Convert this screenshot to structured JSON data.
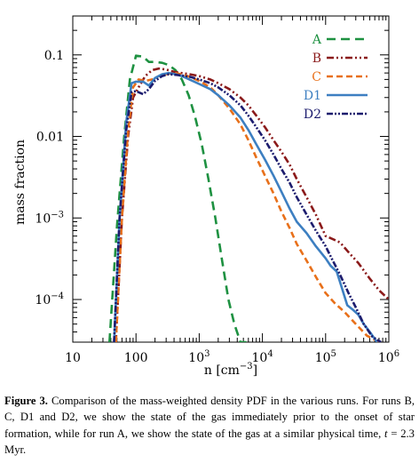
{
  "chart_data": {
    "type": "line",
    "xlabel": "n [cm",
    "xlabel_exp": "−3",
    "xlabel_close": "]",
    "ylabel": "mass fraction",
    "xscale": "log",
    "yscale": "log",
    "xlim": [
      10,
      1000000
    ],
    "ylim": [
      3e-05,
      0.3
    ],
    "legend_position": "top-right",
    "grid": false,
    "x_ticks": [
      {
        "value": 10,
        "base": "10",
        "exp": ""
      },
      {
        "value": 100,
        "base": "100",
        "exp": ""
      },
      {
        "value": 1000,
        "base": "10",
        "exp": "3"
      },
      {
        "value": 10000,
        "base": "10",
        "exp": "4"
      },
      {
        "value": 100000,
        "base": "10",
        "exp": "5"
      },
      {
        "value": 1000000,
        "base": "10",
        "exp": "6"
      }
    ],
    "y_ticks": [
      {
        "value": 0.1,
        "base": "0.1",
        "exp": ""
      },
      {
        "value": 0.01,
        "base": "0.01",
        "exp": ""
      },
      {
        "value": 0.001,
        "base": "10",
        "exp": "−3"
      },
      {
        "value": 0.0001,
        "base": "10",
        "exp": "−4"
      }
    ],
    "series": [
      {
        "name": "A",
        "color": "#1e9141",
        "dash": "10,6",
        "x": [
          38,
          50,
          65,
          80,
          100,
          130,
          160,
          200,
          260,
          330,
          420,
          530,
          680,
          850,
          1100,
          1400,
          1800,
          2300,
          2900,
          3600,
          4500,
          5600
        ],
        "y": [
          3e-05,
          0.0008,
          0.01,
          0.05,
          0.098,
          0.095,
          0.082,
          0.082,
          0.08,
          0.075,
          0.065,
          0.05,
          0.032,
          0.018,
          0.008,
          0.003,
          0.001,
          0.0003,
          0.0001,
          5e-05,
          3e-05,
          3e-05
        ]
      },
      {
        "name": "B",
        "color": "#8b1a1a",
        "dash": "8,3,2,3,2,3",
        "x": [
          48,
          60,
          75,
          90,
          110,
          140,
          180,
          230,
          300,
          400,
          520,
          700,
          1000,
          1500,
          2000,
          3000,
          4500,
          6000,
          8000,
          11000,
          15000,
          20000,
          27000,
          35000,
          50000,
          70000,
          100000,
          130000,
          170000,
          230000,
          330000,
          500000,
          700000,
          1000000
        ],
        "y": [
          3e-05,
          0.001,
          0.01,
          0.03,
          0.04,
          0.055,
          0.065,
          0.068,
          0.066,
          0.062,
          0.06,
          0.058,
          0.055,
          0.05,
          0.045,
          0.038,
          0.03,
          0.024,
          0.018,
          0.013,
          0.009,
          0.0065,
          0.0045,
          0.003,
          0.0018,
          0.0011,
          0.0006,
          0.00055,
          0.0005,
          0.00038,
          0.00028,
          0.00018,
          0.00013,
          0.0001
        ]
      },
      {
        "name": "C",
        "color": "#e8701a",
        "dash": "7,4",
        "x": [
          48,
          60,
          75,
          90,
          110,
          140,
          180,
          230,
          300,
          400,
          520,
          700,
          1000,
          1500,
          2000,
          3000,
          4500,
          6000,
          8000,
          11000,
          15000,
          20000,
          27000,
          35000,
          50000,
          70000,
          100000,
          140000,
          200000,
          300000,
          450000,
          700000
        ],
        "y": [
          3e-05,
          0.001,
          0.012,
          0.04,
          0.05,
          0.048,
          0.05,
          0.055,
          0.058,
          0.06,
          0.058,
          0.054,
          0.048,
          0.04,
          0.032,
          0.022,
          0.014,
          0.009,
          0.0055,
          0.0033,
          0.002,
          0.0012,
          0.00075,
          0.00048,
          0.0003,
          0.00019,
          0.00012,
          9e-05,
          7e-05,
          5e-05,
          3.6e-05,
          3e-05
        ]
      },
      {
        "name": "D1",
        "color": "#3d7fc1",
        "dash": "",
        "x": [
          45,
          55,
          70,
          85,
          100,
          130,
          160,
          200,
          260,
          330,
          420,
          530,
          700,
          1000,
          1500,
          2000,
          3000,
          4500,
          6000,
          8000,
          11000,
          15000,
          20000,
          27000,
          35000,
          50000,
          70000,
          100000,
          120000,
          150000,
          180000,
          220000,
          270000,
          330000,
          400000,
          500000,
          650000
        ],
        "y": [
          3e-05,
          0.001,
          0.015,
          0.045,
          0.047,
          0.047,
          0.042,
          0.052,
          0.058,
          0.06,
          0.058,
          0.055,
          0.05,
          0.044,
          0.038,
          0.032,
          0.024,
          0.017,
          0.012,
          0.008,
          0.0052,
          0.0033,
          0.0021,
          0.0013,
          0.0009,
          0.00065,
          0.00045,
          0.00032,
          0.00026,
          0.00022,
          0.00014,
          8.5e-05,
          7.5e-05,
          6.5e-05,
          5e-05,
          4e-05,
          3e-05
        ]
      },
      {
        "name": "D2",
        "color": "#1c1c6e",
        "dash": "7,2,2,2,2,2",
        "x": [
          45,
          55,
          70,
          85,
          100,
          130,
          160,
          200,
          260,
          330,
          420,
          530,
          700,
          1000,
          1500,
          2000,
          3000,
          4500,
          6000,
          8000,
          11000,
          15000,
          20000,
          27000,
          35000,
          50000,
          70000,
          100000,
          130000,
          170000,
          230000,
          300000,
          400000,
          550000,
          750000
        ],
        "y": [
          3e-05,
          0.001,
          0.012,
          0.035,
          0.036,
          0.033,
          0.038,
          0.048,
          0.055,
          0.058,
          0.057,
          0.056,
          0.054,
          0.05,
          0.045,
          0.04,
          0.032,
          0.024,
          0.018,
          0.013,
          0.009,
          0.006,
          0.004,
          0.0027,
          0.0018,
          0.0011,
          0.0007,
          0.00045,
          0.0003,
          0.0002,
          0.00012,
          8e-05,
          5e-05,
          3.5e-05,
          3e-05
        ]
      }
    ]
  },
  "caption": {
    "label": "Figure 3.",
    "text": " Comparison of the mass-weighted density PDF in the various runs. For runs B, C, D1 and D2, we show the state of the gas immediately prior to the onset of star formation, while for run A, we show the state of the gas at a similar physical time, ",
    "time_var": "t",
    "time_value": " = 2.3 Myr."
  }
}
